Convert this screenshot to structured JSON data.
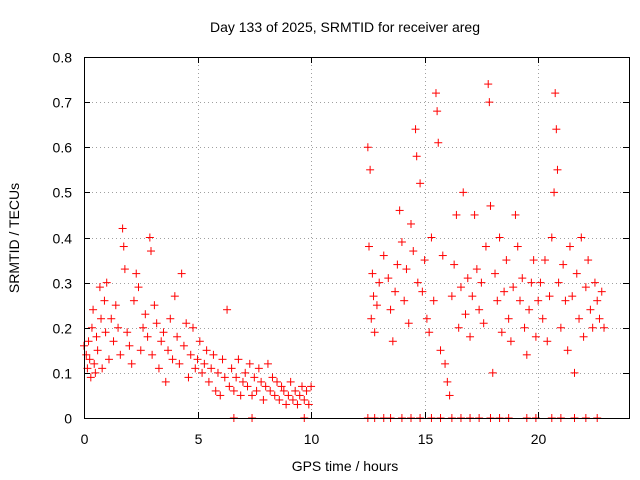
{
  "chart_data": {
    "type": "scatter",
    "title": "Day 133 of 2025, SRMTID for receiver areg",
    "xlabel": "GPS time / hours",
    "ylabel": "SRMTID / TECUs",
    "xlim": [
      0,
      24
    ],
    "ylim": [
      0,
      0.8
    ],
    "xticks": [
      0,
      5,
      10,
      15,
      20
    ],
    "xtick_labels": [
      "0",
      "5",
      "10",
      "15",
      "20"
    ],
    "yticks": [
      0,
      0.1,
      0.2,
      0.3,
      0.4,
      0.5,
      0.6,
      0.7,
      0.8
    ],
    "ytick_labels": [
      "0",
      "0.1",
      "0.2",
      "0.3",
      "0.4",
      "0.5",
      "0.6",
      "0.7",
      "0.8"
    ],
    "grid": true,
    "marker": "plus",
    "color": "#ff0000",
    "series": [
      {
        "name": "SRMTID",
        "points": [
          [
            0.0,
            0.16
          ],
          [
            0.1,
            0.14
          ],
          [
            0.15,
            0.11
          ],
          [
            0.2,
            0.17
          ],
          [
            0.25,
            0.13
          ],
          [
            0.3,
            0.09
          ],
          [
            0.35,
            0.2
          ],
          [
            0.4,
            0.24
          ],
          [
            0.45,
            0.12
          ],
          [
            0.5,
            0.1
          ],
          [
            0.55,
            0.18
          ],
          [
            0.6,
            0.15
          ],
          [
            0.7,
            0.29
          ],
          [
            0.75,
            0.22
          ],
          [
            0.8,
            0.11
          ],
          [
            0.9,
            0.26
          ],
          [
            0.95,
            0.19
          ],
          [
            1.0,
            0.3
          ],
          [
            1.1,
            0.13
          ],
          [
            1.2,
            0.22
          ],
          [
            1.3,
            0.17
          ],
          [
            1.4,
            0.25
          ],
          [
            1.5,
            0.2
          ],
          [
            1.6,
            0.14
          ],
          [
            1.7,
            0.42
          ],
          [
            1.75,
            0.38
          ],
          [
            1.8,
            0.33
          ],
          [
            1.9,
            0.19
          ],
          [
            2.0,
            0.16
          ],
          [
            2.1,
            0.12
          ],
          [
            2.2,
            0.26
          ],
          [
            2.3,
            0.32
          ],
          [
            2.4,
            0.29
          ],
          [
            2.5,
            0.15
          ],
          [
            2.6,
            0.2
          ],
          [
            2.7,
            0.23
          ],
          [
            2.8,
            0.18
          ],
          [
            2.9,
            0.4
          ],
          [
            2.95,
            0.37
          ],
          [
            3.0,
            0.14
          ],
          [
            3.1,
            0.25
          ],
          [
            3.2,
            0.21
          ],
          [
            3.3,
            0.11
          ],
          [
            3.4,
            0.17
          ],
          [
            3.5,
            0.19
          ],
          [
            3.6,
            0.08
          ],
          [
            3.7,
            0.15
          ],
          [
            3.8,
            0.22
          ],
          [
            3.9,
            0.13
          ],
          [
            4.0,
            0.27
          ],
          [
            4.1,
            0.18
          ],
          [
            4.2,
            0.12
          ],
          [
            4.3,
            0.32
          ],
          [
            4.4,
            0.16
          ],
          [
            4.5,
            0.21
          ],
          [
            4.6,
            0.09
          ],
          [
            4.7,
            0.14
          ],
          [
            4.8,
            0.2
          ],
          [
            4.9,
            0.11
          ],
          [
            5.0,
            0.13
          ],
          [
            5.1,
            0.17
          ],
          [
            5.2,
            0.1
          ],
          [
            5.3,
            0.12
          ],
          [
            5.4,
            0.15
          ],
          [
            5.5,
            0.08
          ],
          [
            5.6,
            0.11
          ],
          [
            5.7,
            0.14
          ],
          [
            5.8,
            0.06
          ],
          [
            5.9,
            0.1
          ],
          [
            6.0,
            0.05
          ],
          [
            6.1,
            0.13
          ],
          [
            6.2,
            0.09
          ],
          [
            6.3,
            0.24
          ],
          [
            6.4,
            0.07
          ],
          [
            6.5,
            0.11
          ],
          [
            6.6,
            0.06
          ],
          [
            6.7,
            0.09
          ],
          [
            6.8,
            0.13
          ],
          [
            6.9,
            0.05
          ],
          [
            7.0,
            0.08
          ],
          [
            7.1,
            0.1
          ],
          [
            7.2,
            0.07
          ],
          [
            7.3,
            0.12
          ],
          [
            7.4,
            0.05
          ],
          [
            7.5,
            0.09
          ],
          [
            7.6,
            0.06
          ],
          [
            7.7,
            0.11
          ],
          [
            7.8,
            0.08
          ],
          [
            7.9,
            0.04
          ],
          [
            8.0,
            0.07
          ],
          [
            8.1,
            0.12
          ],
          [
            8.2,
            0.06
          ],
          [
            8.3,
            0.09
          ],
          [
            8.4,
            0.05
          ],
          [
            8.5,
            0.08
          ],
          [
            8.6,
            0.04
          ],
          [
            8.7,
            0.07
          ],
          [
            8.8,
            0.06
          ],
          [
            8.9,
            0.03
          ],
          [
            9.0,
            0.05
          ],
          [
            9.1,
            0.08
          ],
          [
            9.2,
            0.04
          ],
          [
            9.3,
            0.06
          ],
          [
            9.4,
            0.03
          ],
          [
            9.5,
            0.05
          ],
          [
            9.6,
            0.07
          ],
          [
            9.7,
            0.04
          ],
          [
            9.8,
            0.06
          ],
          [
            9.9,
            0.03
          ],
          [
            10.0,
            0.07
          ],
          [
            12.5,
            0.6
          ],
          [
            12.55,
            0.38
          ],
          [
            12.6,
            0.55
          ],
          [
            12.65,
            0.22
          ],
          [
            12.7,
            0.32
          ],
          [
            12.75,
            0.27
          ],
          [
            12.8,
            0.19
          ],
          [
            12.9,
            0.25
          ],
          [
            13.0,
            0.3
          ],
          [
            13.2,
            0.36
          ],
          [
            13.4,
            0.31
          ],
          [
            13.5,
            0.24
          ],
          [
            13.6,
            0.17
          ],
          [
            13.7,
            0.28
          ],
          [
            13.8,
            0.34
          ],
          [
            13.9,
            0.46
          ],
          [
            14.0,
            0.39
          ],
          [
            14.1,
            0.26
          ],
          [
            14.2,
            0.33
          ],
          [
            14.3,
            0.21
          ],
          [
            14.4,
            0.43
          ],
          [
            14.5,
            0.37
          ],
          [
            14.6,
            0.64
          ],
          [
            14.65,
            0.58
          ],
          [
            14.7,
            0.3
          ],
          [
            14.8,
            0.52
          ],
          [
            14.9,
            0.28
          ],
          [
            15.0,
            0.35
          ],
          [
            15.1,
            0.22
          ],
          [
            15.2,
            0.19
          ],
          [
            15.3,
            0.4
          ],
          [
            15.4,
            0.26
          ],
          [
            15.5,
            0.72
          ],
          [
            15.55,
            0.68
          ],
          [
            15.6,
            0.61
          ],
          [
            15.7,
            0.15
          ],
          [
            15.8,
            0.36
          ],
          [
            15.9,
            0.12
          ],
          [
            16.0,
            0.08
          ],
          [
            16.1,
            0.05
          ],
          [
            16.2,
            0.27
          ],
          [
            16.3,
            0.34
          ],
          [
            16.4,
            0.45
          ],
          [
            16.5,
            0.2
          ],
          [
            16.6,
            0.29
          ],
          [
            16.7,
            0.5
          ],
          [
            16.8,
            0.23
          ],
          [
            16.9,
            0.31
          ],
          [
            17.0,
            0.18
          ],
          [
            17.1,
            0.27
          ],
          [
            17.2,
            0.45
          ],
          [
            17.3,
            0.33
          ],
          [
            17.4,
            0.24
          ],
          [
            17.5,
            0.3
          ],
          [
            17.6,
            0.21
          ],
          [
            17.7,
            0.38
          ],
          [
            17.8,
            0.74
          ],
          [
            17.85,
            0.7
          ],
          [
            17.9,
            0.47
          ],
          [
            18.0,
            0.1
          ],
          [
            18.1,
            0.32
          ],
          [
            18.2,
            0.26
          ],
          [
            18.3,
            0.4
          ],
          [
            18.4,
            0.19
          ],
          [
            18.5,
            0.28
          ],
          [
            18.6,
            0.35
          ],
          [
            18.7,
            0.22
          ],
          [
            18.8,
            0.17
          ],
          [
            18.9,
            0.29
          ],
          [
            19.0,
            0.45
          ],
          [
            19.1,
            0.38
          ],
          [
            19.2,
            0.26
          ],
          [
            19.3,
            0.31
          ],
          [
            19.4,
            0.2
          ],
          [
            19.5,
            0.14
          ],
          [
            19.6,
            0.24
          ],
          [
            19.7,
            0.3
          ],
          [
            19.8,
            0.35
          ],
          [
            19.9,
            0.18
          ],
          [
            20.0,
            0.26
          ],
          [
            20.1,
            0.3
          ],
          [
            20.2,
            0.22
          ],
          [
            20.3,
            0.35
          ],
          [
            20.4,
            0.17
          ],
          [
            20.5,
            0.27
          ],
          [
            20.6,
            0.4
          ],
          [
            20.7,
            0.5
          ],
          [
            20.75,
            0.72
          ],
          [
            20.8,
            0.64
          ],
          [
            20.85,
            0.55
          ],
          [
            20.9,
            0.3
          ],
          [
            21.0,
            0.2
          ],
          [
            21.1,
            0.34
          ],
          [
            21.2,
            0.26
          ],
          [
            21.3,
            0.15
          ],
          [
            21.4,
            0.38
          ],
          [
            21.5,
            0.27
          ],
          [
            21.6,
            0.1
          ],
          [
            21.7,
            0.32
          ],
          [
            21.8,
            0.22
          ],
          [
            21.9,
            0.4
          ],
          [
            22.0,
            0.18
          ],
          [
            22.1,
            0.29
          ],
          [
            22.2,
            0.35
          ],
          [
            22.3,
            0.24
          ],
          [
            22.4,
            0.2
          ],
          [
            22.5,
            0.3
          ],
          [
            22.6,
            0.26
          ],
          [
            22.7,
            0.22
          ],
          [
            22.8,
            0.28
          ],
          [
            22.9,
            0.2
          ],
          [
            12.5,
            0.0
          ],
          [
            12.8,
            0.0
          ],
          [
            13.2,
            0.0
          ],
          [
            13.5,
            0.0
          ],
          [
            14.0,
            0.0
          ],
          [
            14.4,
            0.0
          ],
          [
            14.8,
            0.0
          ],
          [
            15.3,
            0.0
          ],
          [
            15.7,
            0.0
          ],
          [
            16.2,
            0.0
          ],
          [
            16.6,
            0.0
          ],
          [
            17.0,
            0.0
          ],
          [
            17.4,
            0.0
          ],
          [
            17.9,
            0.0
          ],
          [
            18.3,
            0.0
          ],
          [
            18.7,
            0.0
          ],
          [
            19.5,
            0.0
          ],
          [
            19.9,
            0.0
          ],
          [
            20.6,
            0.0
          ],
          [
            21.0,
            0.0
          ],
          [
            21.6,
            0.0
          ],
          [
            22.1,
            0.0
          ],
          [
            22.6,
            0.0
          ],
          [
            6.6,
            0.0
          ],
          [
            7.4,
            0.0
          ],
          [
            9.7,
            0.0
          ]
        ]
      }
    ]
  }
}
